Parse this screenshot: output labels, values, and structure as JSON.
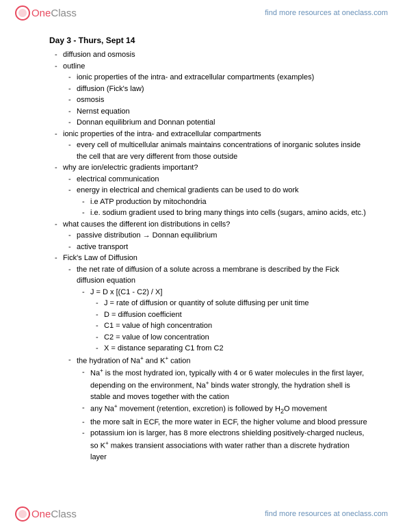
{
  "brand": {
    "one": "One",
    "class": "Class"
  },
  "header_link": "find more resources at oneclass.com",
  "footer_link": "find more resources at oneclass.com",
  "title": "Day 3 - Thurs, Sept 14",
  "l1_1": "diffusion and osmosis",
  "l1_2": "outline",
  "l2_1": "ionic properties of the intra- and extracellular compartments (examples)",
  "l2_2": "diffusion (Fick's law)",
  "l2_3": "osmosis",
  "l2_4": "Nernst equation",
  "l2_5": "Donnan equilibrium and Donnan potential",
  "l1_3": "ionic properties of the intra- and extracellular compartments",
  "l2_6": "every cell of multicellular animals maintains concentrations of inorganic solutes inside the cell that are very different from those outside",
  "l1_4": "why are ion/electric gradients important?",
  "l2_7": "electrical communication",
  "l2_8": "energy in electrical and chemical gradients can be used to do work",
  "l3_1": "i.e ATP production by mitochondria",
  "l3_2": "i.e. sodium gradient used to bring many things into cells (sugars, amino acids, etc.)",
  "l1_5": "what causes the different ion distributions in cells?",
  "l2_9": "passive distribution → Donnan equilibrium",
  "l2_10": "active transport",
  "l1_6": "Fick's Law of Diffusion",
  "l2_11": "the net rate of diffusion of a solute across a membrane is described by the Fick diffusion equation",
  "l3_3": "J = D x [(C1 - C2) / X]",
  "l4_1": "J = rate of diffusion or quantity of solute diffusing per unit time",
  "l4_2": "D = diffusion coefficient",
  "l4_3": "C1 = value of high concentration",
  "l4_4": "C2 = value of low concentration",
  "l4_5": "X = distance separating C1 from C2",
  "l2_12_pre": "the hydration of Na",
  "l2_12_mid": " and K",
  "l2_12_post": " cation",
  "l3_4_pre": "Na",
  "l3_4_post": " is the most hydrated ion, typically with 4 or 6 water molecules in the first layer, depending on the environment, Na",
  "l3_4_end": " binds water strongly, the hydration shell is stable and moves together with the cation",
  "l3_5_pre": "any Na",
  "l3_5_mid": " movement (retention, excretion) is followed by H",
  "l3_5_post": "O movement",
  "l3_6": "the more salt in ECF, the more water in ECF, the higher volume and blood pressure",
  "l3_7_pre": "potassium ion is larger, has 8 more electrons shielding positively-charged nucleus, so K",
  "l3_7_post": " makes transient associations with water rather than a discrete hydration layer",
  "plus": "+",
  "two": "2"
}
